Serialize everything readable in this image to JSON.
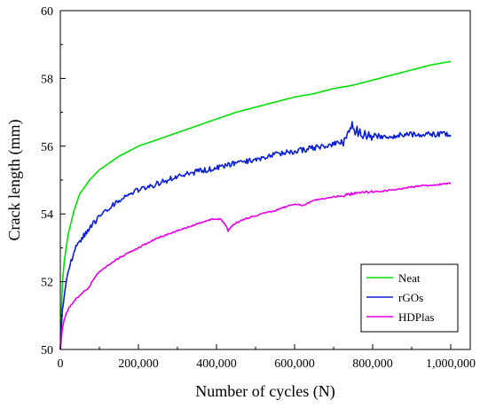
{
  "chart_data": {
    "type": "line",
    "title": "",
    "xlabel": "Number of cycles (N)",
    "ylabel": "Crack length (mm)",
    "xlim": [
      0,
      1050000
    ],
    "ylim": [
      50,
      60
    ],
    "x_ticks": [
      0,
      200000,
      400000,
      600000,
      800000,
      1000000
    ],
    "x_tick_labels": [
      "0",
      "200,000",
      "400,000",
      "600,000",
      "800,000",
      "1,000,000"
    ],
    "y_ticks": [
      50,
      52,
      54,
      56,
      58,
      60
    ],
    "y_tick_labels": [
      "50",
      "52",
      "54",
      "56",
      "58",
      "60"
    ],
    "grid": false,
    "legend_position": "bottom-right",
    "series": [
      {
        "name": "Neat",
        "color": "#00e000",
        "noise": 0,
        "x": [
          0,
          5000,
          10000,
          20000,
          35000,
          50000,
          75000,
          100000,
          150000,
          200000,
          250000,
          300000,
          350000,
          400000,
          450000,
          500000,
          550000,
          600000,
          650000,
          700000,
          750000,
          800000,
          850000,
          900000,
          950000,
          1000000
        ],
        "y": [
          50.0,
          51.9,
          52.6,
          53.4,
          54.1,
          54.6,
          55.0,
          55.3,
          55.7,
          56.0,
          56.2,
          56.4,
          56.6,
          56.8,
          57.0,
          57.15,
          57.3,
          57.45,
          57.55,
          57.7,
          57.8,
          57.95,
          58.1,
          58.25,
          58.4,
          58.5
        ]
      },
      {
        "name": "rGOs",
        "color": "#0a1fd6",
        "noise": 0.08,
        "x": [
          0,
          5000,
          10000,
          20000,
          35000,
          50000,
          75000,
          100000,
          150000,
          200000,
          250000,
          300000,
          350000,
          400000,
          450000,
          500000,
          550000,
          600000,
          650000,
          700000,
          730000,
          745000,
          760000,
          800000,
          850000,
          900000,
          950000,
          1000000
        ],
        "y": [
          50.0,
          51.2,
          51.6,
          52.3,
          52.9,
          53.2,
          53.6,
          53.9,
          54.4,
          54.7,
          54.9,
          55.1,
          55.25,
          55.35,
          55.5,
          55.6,
          55.75,
          55.85,
          55.95,
          56.05,
          56.15,
          56.6,
          56.45,
          56.3,
          56.3,
          56.35,
          56.35,
          56.35
        ]
      },
      {
        "name": "HDPlas",
        "color": "#e800e8",
        "noise": 0.02,
        "x": [
          0,
          5000,
          10000,
          20000,
          40000,
          60000,
          75000,
          80000,
          100000,
          150000,
          200000,
          250000,
          300000,
          350000,
          390000,
          410000,
          425000,
          430000,
          440000,
          460000,
          500000,
          550000,
          600000,
          620000,
          650000,
          700000,
          750000,
          800000,
          850000,
          900000,
          950000,
          1000000
        ],
        "y": [
          50.0,
          50.6,
          50.9,
          51.2,
          51.5,
          51.7,
          51.85,
          52.0,
          52.3,
          52.7,
          53.0,
          53.3,
          53.5,
          53.7,
          53.85,
          53.85,
          53.65,
          53.5,
          53.65,
          53.8,
          53.95,
          54.1,
          54.3,
          54.25,
          54.4,
          54.5,
          54.6,
          54.65,
          54.7,
          54.8,
          54.85,
          54.9
        ]
      }
    ]
  }
}
